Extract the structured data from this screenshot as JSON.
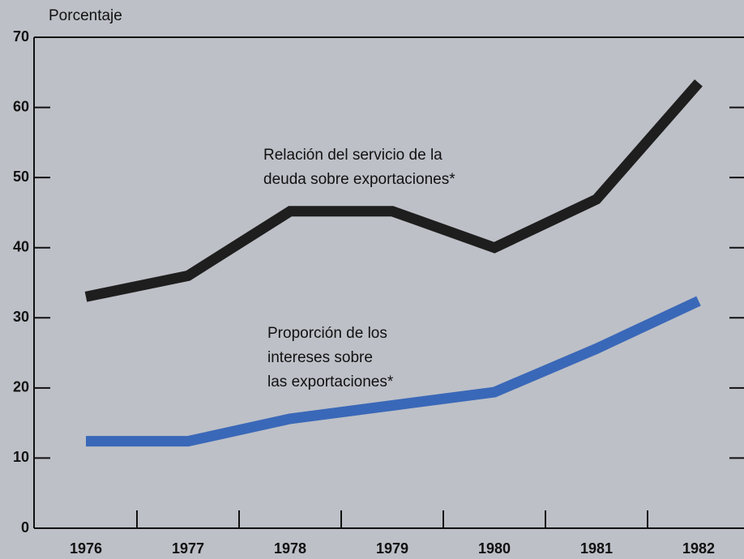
{
  "chart_data": {
    "type": "line",
    "y_label": "Porcentaje",
    "categories": [
      "1976",
      "1977",
      "1978",
      "1979",
      "1980",
      "1981",
      "1982"
    ],
    "series": [
      {
        "color": "#1e1e1e",
        "values": [
          33,
          36,
          45.2,
          45.2,
          40,
          46.9,
          63.5
        ]
      },
      {
        "color": "#3a68b8",
        "values": [
          12.4,
          12.4,
          15.6,
          17.5,
          19.4,
          25.6,
          32.4
        ]
      }
    ],
    "annotations": [
      {
        "lines": [
          "Relación del servicio de la",
          "deuda sobre exportaciones*"
        ]
      },
      {
        "lines": [
          "Proporción de los",
          "intereses sobre",
          "las exportaciones*"
        ]
      }
    ],
    "ylim": [
      0,
      70
    ],
    "yticks": [
      0,
      10,
      20,
      30,
      40,
      50,
      60,
      70
    ]
  }
}
